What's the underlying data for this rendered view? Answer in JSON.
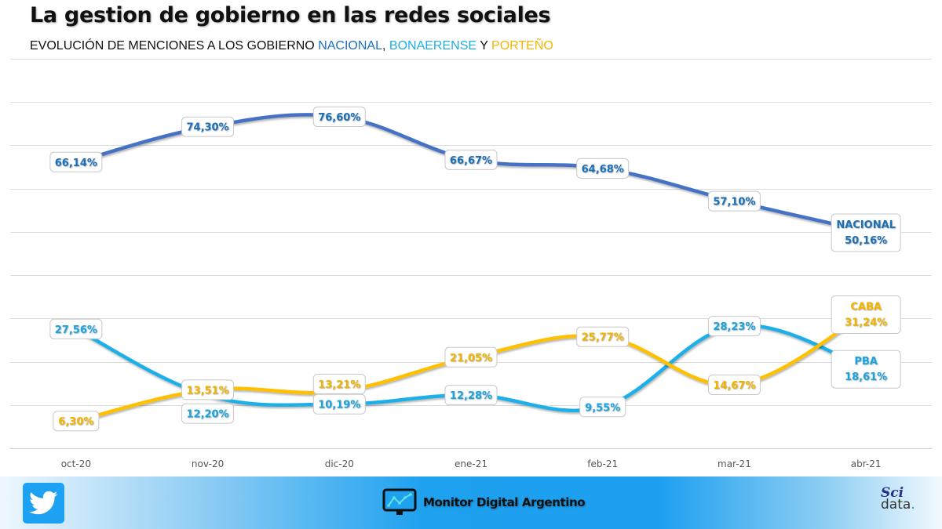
{
  "header": {
    "title": "La gestion de gobierno en las redes sociales",
    "subtitle_prefix": "EVOLUCIÓN DE MENCIONES A LOS GOBIERNO ",
    "subtitle_nacional": "NACIONAL",
    "subtitle_comma": ", ",
    "subtitle_bonaerense": "BONAERENSE",
    "subtitle_y": " Y ",
    "subtitle_porteno": "PORTEÑO"
  },
  "chart_data": {
    "type": "line",
    "title": "La gestion de gobierno en las redes sociales",
    "subtitle": "EVOLUCIÓN DE MENCIONES A LOS GOBIERNO NACIONAL, BONAERENSE Y PORTEÑO",
    "xlabel": "",
    "ylabel": "",
    "ylim": [
      0,
      90
    ],
    "ytick_step": 10,
    "grid": true,
    "smooth": true,
    "categories": [
      "oct-20",
      "nov-20",
      "dic-20",
      "ene-21",
      "feb-21",
      "mar-21",
      "abr-21"
    ],
    "series": [
      {
        "name": "NACIONAL",
        "color": "#4472C4",
        "label_color": "#1F6FB5",
        "values": [
          66.14,
          74.3,
          76.6,
          66.67,
          64.68,
          57.1,
          50.16
        ],
        "labels": [
          "66,14%",
          "74,30%",
          "76,60%",
          "66,67%",
          "64,68%",
          "57,10%",
          "50,16%"
        ]
      },
      {
        "name": "PBA",
        "color": "#1AAFE8",
        "label_color": "#1AA3DB",
        "values": [
          27.56,
          12.2,
          10.19,
          12.28,
          9.55,
          28.23,
          18.61
        ],
        "labels": [
          "27,56%",
          "12,20%",
          "10,19%",
          "12,28%",
          "9,55%",
          "28,23%",
          "18,61%"
        ]
      },
      {
        "name": "CABA",
        "color": "#FFC000",
        "label_color": "#F0B400",
        "values": [
          6.3,
          13.51,
          13.21,
          21.05,
          25.77,
          14.67,
          31.24
        ],
        "labels": [
          "6,30%",
          "13,51%",
          "13,21%",
          "21,05%",
          "25,77%",
          "14,67%",
          "31,24%"
        ]
      }
    ]
  },
  "footer": {
    "twitter_icon": "twitter-bird-icon",
    "brand_label": "Monitor Digital Argentino",
    "brand_icon": "monitor-chart-icon",
    "scidata_top": "Sci",
    "scidata_bottom": "data",
    "scidata_dot": "."
  }
}
